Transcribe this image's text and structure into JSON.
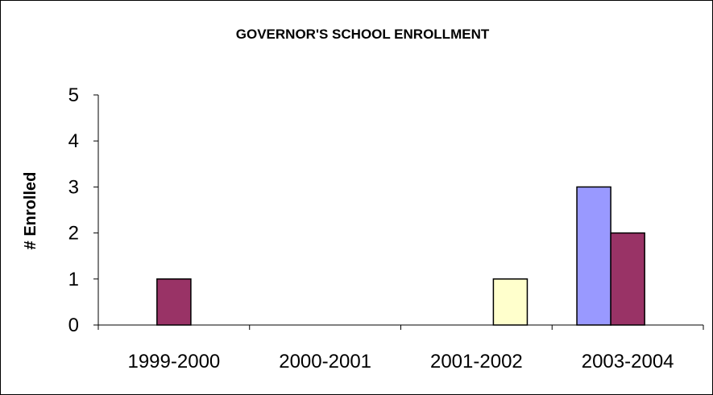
{
  "chart_data": {
    "type": "bar",
    "title": "GOVERNOR'S SCHOOL ENROLLMENT",
    "xlabel": "",
    "ylabel": "# Enrolled",
    "categories": [
      "1999-2000",
      "2000-2001",
      "2001-2002",
      "2003-2004"
    ],
    "ylim": [
      0,
      5
    ],
    "yticks": [
      "0",
      "1",
      "2",
      "3",
      "4",
      "5"
    ],
    "grid": false,
    "legend": "none",
    "series": [
      {
        "color": "#9999ff",
        "values": [
          0,
          0,
          0,
          3
        ]
      },
      {
        "color": "#993366",
        "values": [
          1,
          0,
          0,
          2
        ]
      },
      {
        "color": "#ffffcc",
        "values": [
          0,
          0,
          1,
          0
        ]
      }
    ]
  }
}
